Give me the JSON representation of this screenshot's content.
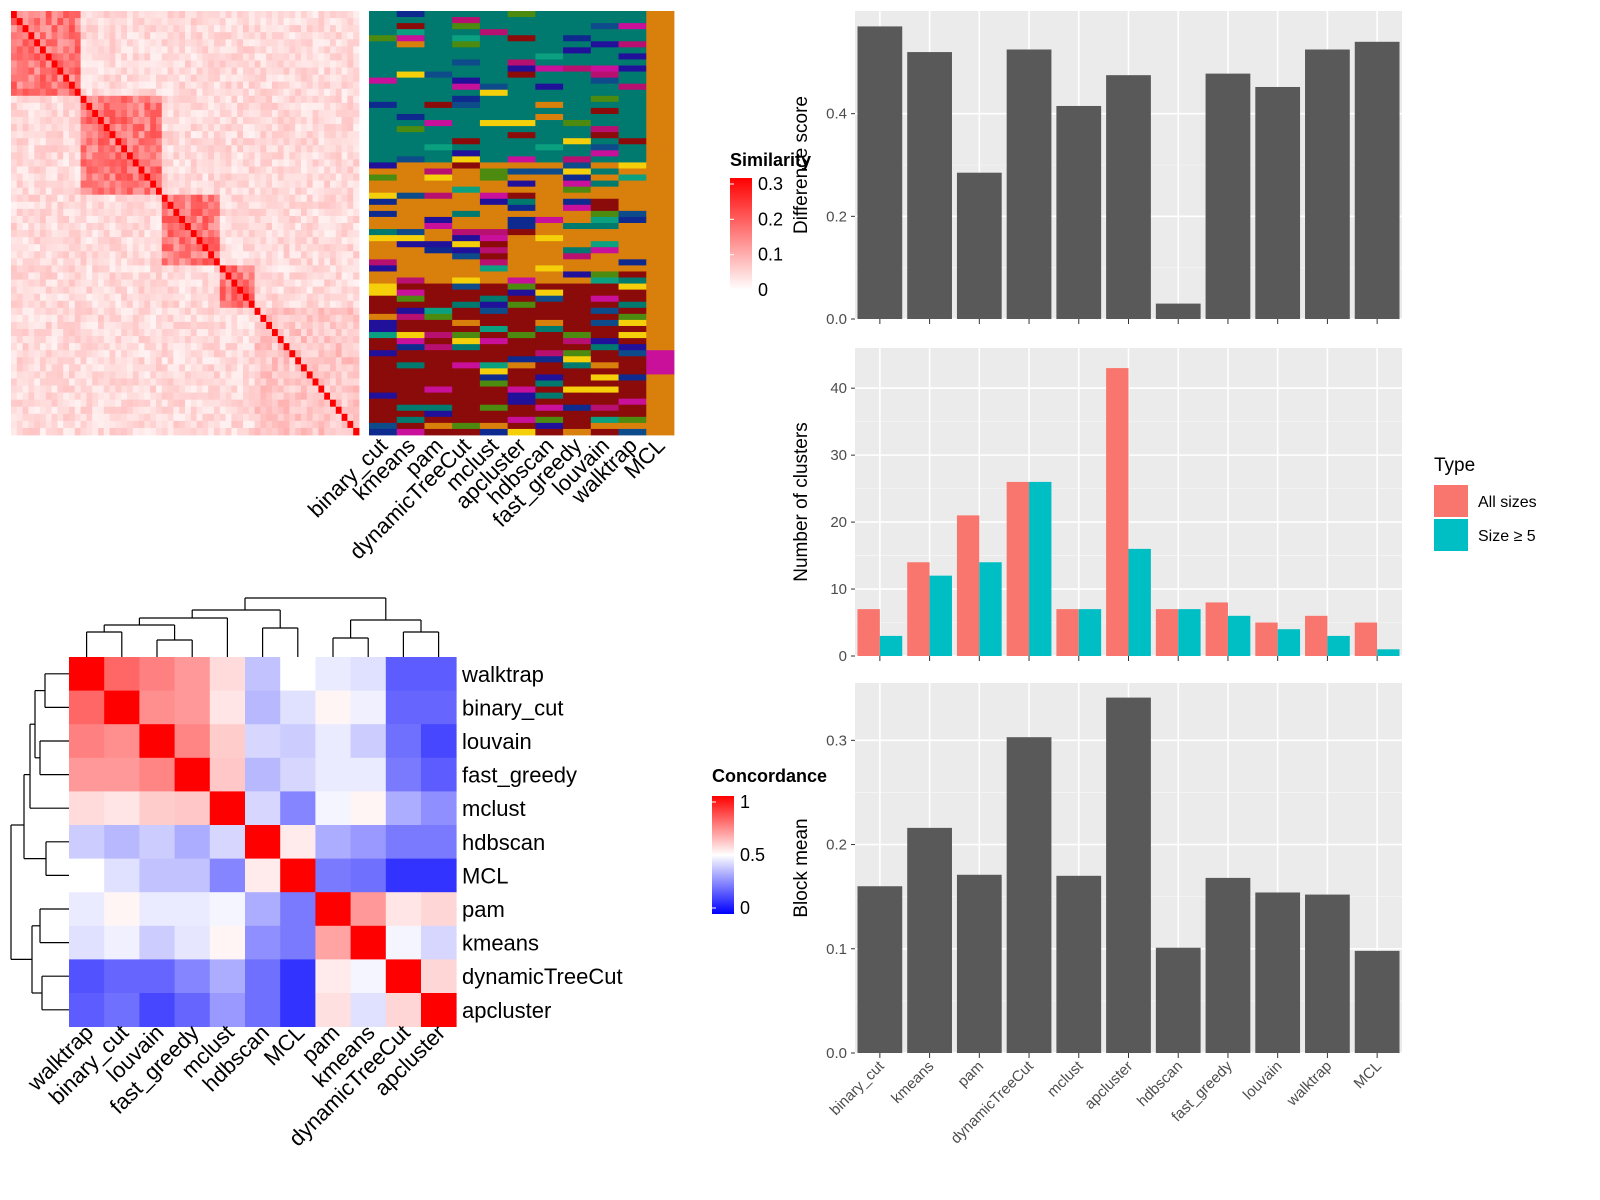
{
  "chart_data": [
    {
      "type": "heatmap",
      "name": "similarity-matrix",
      "legend_title": "Similarity",
      "legend_ticks": [
        0,
        0.1,
        0.2,
        0.3
      ],
      "legend_tick_labels": [
        "0",
        "0.1",
        "0.2",
        "0.3"
      ],
      "colors": {
        "low": "#ffffff",
        "high": "#ff0000"
      }
    },
    {
      "type": "heatmap",
      "name": "cluster-label-heatmap",
      "methods": [
        "binary_cut",
        "kmeans",
        "pam",
        "dynamicTreeCut",
        "mclust",
        "apcluster",
        "hdbscan",
        "fast_greedy",
        "louvain",
        "walktrap",
        "MCL"
      ]
    },
    {
      "type": "heatmap",
      "name": "concordance-heatmap",
      "legend_title": "Concordance",
      "legend_ticks": [
        0,
        0.5,
        1
      ],
      "legend_tick_labels": [
        "0",
        "0.5",
        "1"
      ],
      "colors": {
        "low": "#0000ff",
        "mid": "#ffffff",
        "high": "#ff0000"
      },
      "rows": [
        "walktrap",
        "binary_cut",
        "louvain",
        "fast_greedy",
        "mclust",
        "hdbscan",
        "MCL",
        "pam",
        "kmeans",
        "dynamicTreeCut",
        "apcluster"
      ],
      "columns": [
        "walktrap",
        "binary_cut",
        "louvain",
        "fast_greedy",
        "mclust",
        "hdbscan",
        "MCL",
        "pam",
        "kmeans",
        "dynamicTreeCut",
        "apcluster"
      ],
      "values": [
        [
          1.0,
          0.8,
          0.75,
          0.7,
          0.57,
          0.38,
          0.5,
          0.46,
          0.44,
          0.18,
          0.18
        ],
        [
          0.8,
          1.0,
          0.72,
          0.7,
          0.55,
          0.36,
          0.44,
          0.52,
          0.47,
          0.2,
          0.2
        ],
        [
          0.75,
          0.72,
          1.0,
          0.74,
          0.6,
          0.42,
          0.4,
          0.46,
          0.4,
          0.22,
          0.14
        ],
        [
          0.7,
          0.7,
          0.74,
          1.0,
          0.61,
          0.36,
          0.42,
          0.46,
          0.46,
          0.24,
          0.18
        ],
        [
          0.57,
          0.55,
          0.6,
          0.61,
          1.0,
          0.42,
          0.26,
          0.48,
          0.52,
          0.34,
          0.28
        ],
        [
          0.4,
          0.36,
          0.4,
          0.34,
          0.42,
          1.0,
          0.54,
          0.34,
          0.3,
          0.24,
          0.24
        ],
        [
          0.5,
          0.44,
          0.38,
          0.38,
          0.26,
          0.54,
          1.0,
          0.24,
          0.22,
          0.1,
          0.1
        ],
        [
          0.46,
          0.52,
          0.46,
          0.46,
          0.48,
          0.34,
          0.24,
          1.0,
          0.7,
          0.55,
          0.58
        ],
        [
          0.44,
          0.47,
          0.4,
          0.45,
          0.52,
          0.28,
          0.24,
          0.68,
          1.0,
          0.48,
          0.42
        ],
        [
          0.16,
          0.2,
          0.2,
          0.26,
          0.34,
          0.22,
          0.1,
          0.54,
          0.48,
          1.0,
          0.58
        ],
        [
          0.18,
          0.22,
          0.14,
          0.2,
          0.3,
          0.22,
          0.1,
          0.56,
          0.44,
          0.58,
          1.0
        ]
      ]
    },
    {
      "type": "bar",
      "name": "difference-score",
      "categories": [
        "binary_cut",
        "kmeans",
        "pam",
        "dynamicTreeCut",
        "mclust",
        "apcluster",
        "hdbscan",
        "fast_greedy",
        "louvain",
        "walktrap",
        "MCL"
      ],
      "values": [
        0.57,
        0.52,
        0.285,
        0.525,
        0.415,
        0.475,
        0.03,
        0.478,
        0.452,
        0.525,
        0.54
      ],
      "ylabel": "Difference score",
      "ylim": [
        0,
        0.6
      ],
      "yticks": [
        0,
        0.2,
        0.4
      ],
      "ytick_labels": [
        "0.0",
        "0.2",
        "0.4"
      ],
      "bar_color": "#595959"
    },
    {
      "type": "bar",
      "name": "number-of-clusters",
      "categories": [
        "binary_cut",
        "kmeans",
        "pam",
        "dynamicTreeCut",
        "mclust",
        "apcluster",
        "hdbscan",
        "fast_greedy",
        "louvain",
        "walktrap",
        "MCL"
      ],
      "series": [
        {
          "name": "All sizes",
          "color": "#F8766D",
          "values": [
            7,
            14,
            21,
            26,
            7,
            43,
            7,
            8,
            5,
            6,
            5
          ]
        },
        {
          "name": "Size ≥ 5",
          "color": "#00BFC4",
          "values": [
            3,
            12,
            14,
            26,
            7,
            16,
            7,
            6,
            4,
            3,
            1
          ]
        }
      ],
      "ylabel": "Number of clusters",
      "ylim": [
        0,
        46
      ],
      "yticks": [
        0,
        10,
        20,
        30,
        40
      ],
      "ytick_labels": [
        "0",
        "10",
        "20",
        "30",
        "40"
      ],
      "legend_title": "Type",
      "legend_position": "right"
    },
    {
      "type": "bar",
      "name": "block-mean",
      "categories": [
        "binary_cut",
        "kmeans",
        "pam",
        "dynamicTreeCut",
        "mclust",
        "apcluster",
        "hdbscan",
        "fast_greedy",
        "louvain",
        "walktrap",
        "MCL"
      ],
      "values": [
        0.16,
        0.216,
        0.171,
        0.303,
        0.17,
        0.341,
        0.101,
        0.168,
        0.154,
        0.152,
        0.098
      ],
      "ylabel": "Block mean",
      "ylim": [
        0,
        0.355
      ],
      "yticks": [
        0,
        0.1,
        0.2,
        0.3
      ],
      "ytick_labels": [
        "0.0",
        "0.1",
        "0.2",
        "0.3"
      ],
      "bar_color": "#595959"
    }
  ]
}
